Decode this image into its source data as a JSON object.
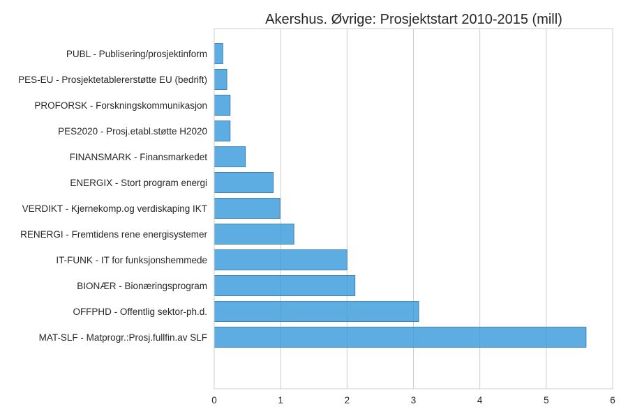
{
  "chart_data": {
    "type": "bar",
    "orientation": "horizontal",
    "title": "Akershus. Øvrige: Prosjektstart 2010-2015 (mill)",
    "xlabel": "",
    "ylabel": "",
    "xlim": [
      0,
      6
    ],
    "xticks": [
      "0",
      "1",
      "2",
      "3",
      "4",
      "5",
      "6"
    ],
    "grid": true,
    "bar_color": "#3498db",
    "categories": [
      "PUBL - Publisering/prosjektinform",
      "PES-EU - Prosjektetablererstøtte EU (bedrift)",
      "PROFORSK - Forskningskommunikasjon",
      "PES2020 - Prosj.etabl.støtte H2020",
      "FINANSMARK - Finansmarkedet",
      "ENERGIX - Stort program energi",
      "VERDIKT - Kjernekomp.og verdiskaping IKT",
      "RENERGI - Fremtidens rene energisystemer",
      "IT-FUNK - IT for funksjonshemmede",
      "BIONÆR - Bionæringsprogram",
      "OFFPHD - Offentlig sektor-ph.d.",
      "MAT-SLF - Matprogr.:Prosj.fullfin.av SLF"
    ],
    "values": [
      0.13,
      0.19,
      0.24,
      0.24,
      0.47,
      0.89,
      0.99,
      1.2,
      2.0,
      2.12,
      3.08,
      5.6
    ]
  }
}
